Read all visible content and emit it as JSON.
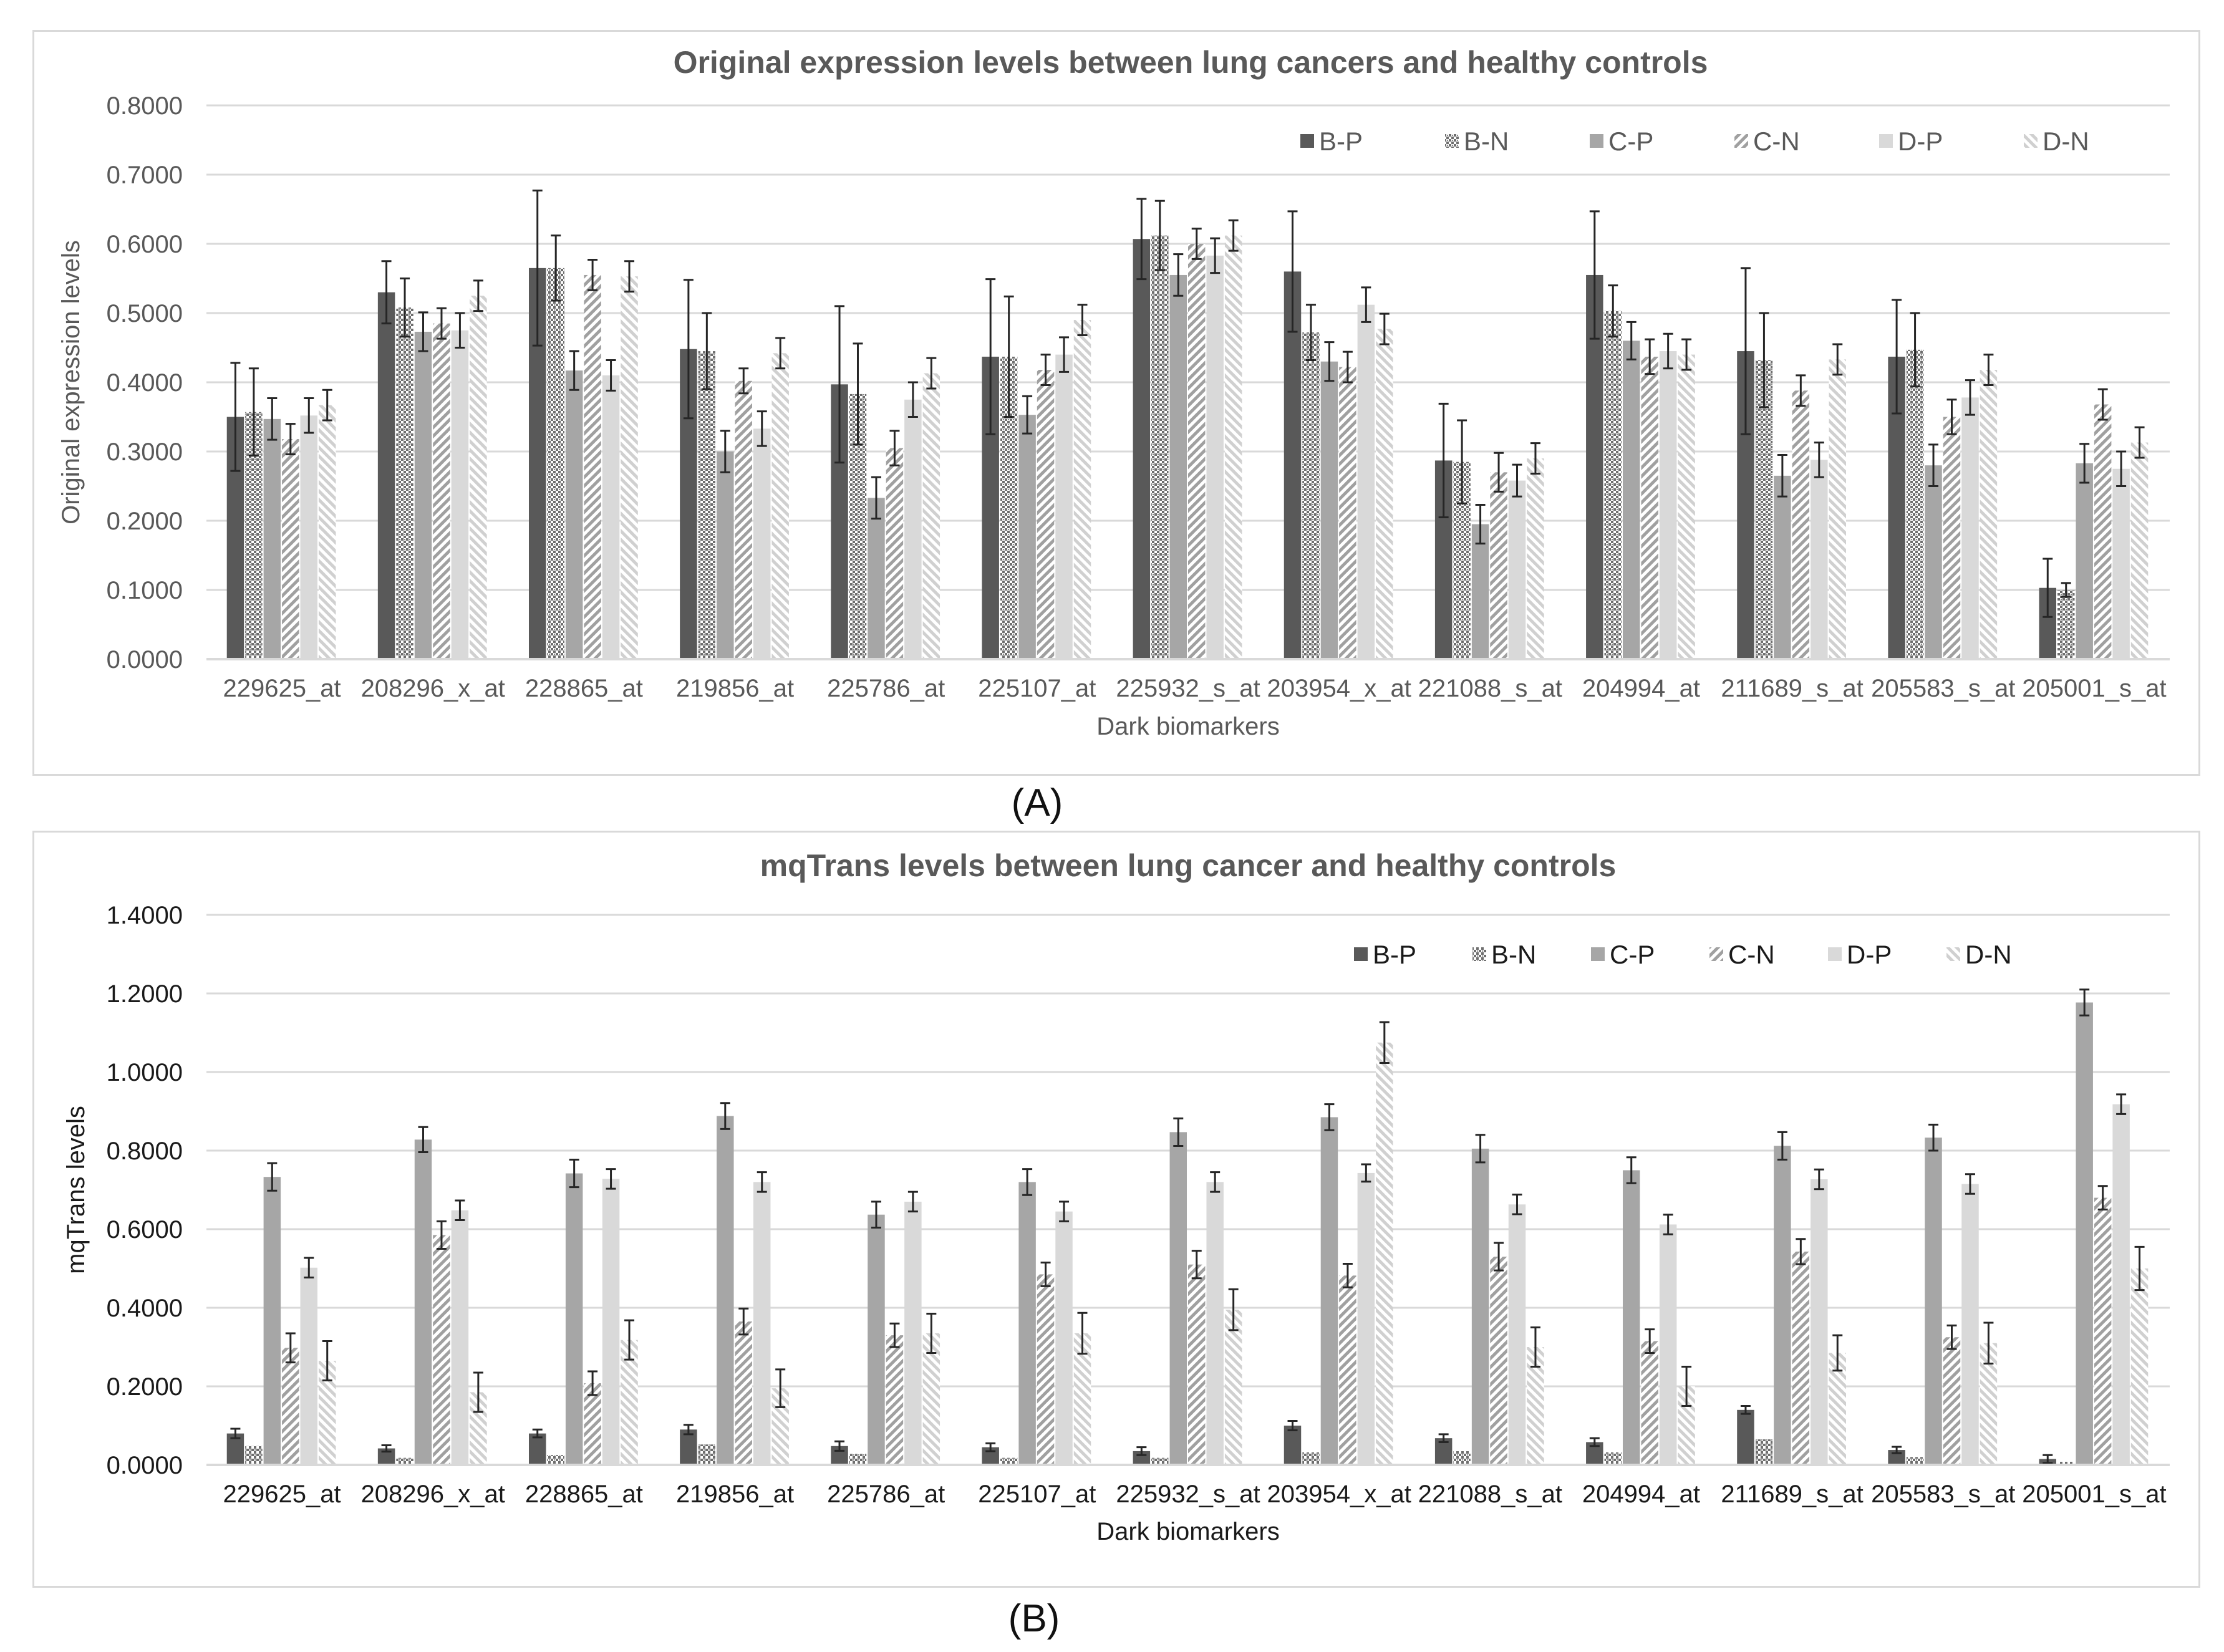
{
  "colors": {
    "B-P": "#595959",
    "B-N": "#6e6e6e",
    "C-P": "#a6a6a6",
    "C-N": "#a0a0a0",
    "D-P": "#d9d9d9",
    "D-N": "#d0d0d0",
    "grid": "#d9d9d9",
    "errorbar": "#262626"
  },
  "captions": {
    "a": "(A)",
    "b": "(B)"
  },
  "chart_data": [
    {
      "type": "bar",
      "title": "Original expression levels between lung cancers and healthy controls",
      "xlabel": "Dark biomarkers",
      "ylabel": "Original expression levels",
      "ylim": [
        0,
        0.8
      ],
      "yticks": [
        "0.0000",
        "0.1000",
        "0.2000",
        "0.3000",
        "0.4000",
        "0.5000",
        "0.6000",
        "0.7000",
        "0.8000"
      ],
      "grid": true,
      "legend_position": "top-right",
      "categories": [
        "229625_at",
        "208296_x_at",
        "228865_at",
        "219856_at",
        "225786_at",
        "225107_at",
        "225932_s_at",
        "203954_x_at",
        "221088_s_at",
        "204994_at",
        "211689_s_at",
        "205583_s_at",
        "205001_s_at"
      ],
      "series": [
        {
          "name": "B-P",
          "values": [
            0.35,
            0.53,
            0.565,
            0.448,
            0.397,
            0.437,
            0.607,
            0.56,
            0.287,
            0.555,
            0.445,
            0.437,
            0.103
          ],
          "errors": [
            0.078,
            0.045,
            0.112,
            0.1,
            0.113,
            0.112,
            0.058,
            0.087,
            0.082,
            0.092,
            0.12,
            0.082,
            0.042
          ]
        },
        {
          "name": "B-N",
          "values": [
            0.357,
            0.508,
            0.565,
            0.445,
            0.383,
            0.437,
            0.612,
            0.472,
            0.285,
            0.503,
            0.432,
            0.447,
            0.1
          ],
          "errors": [
            0.063,
            0.042,
            0.047,
            0.055,
            0.073,
            0.087,
            0.05,
            0.04,
            0.06,
            0.037,
            0.068,
            0.053,
            0.01
          ]
        },
        {
          "name": "C-P",
          "values": [
            0.347,
            0.473,
            0.417,
            0.3,
            0.233,
            0.353,
            0.555,
            0.43,
            0.195,
            0.46,
            0.265,
            0.28,
            0.283
          ],
          "errors": [
            0.03,
            0.028,
            0.028,
            0.03,
            0.03,
            0.027,
            0.03,
            0.028,
            0.028,
            0.027,
            0.03,
            0.03,
            0.028
          ]
        },
        {
          "name": "C-N",
          "values": [
            0.318,
            0.485,
            0.555,
            0.402,
            0.305,
            0.418,
            0.6,
            0.422,
            0.27,
            0.437,
            0.388,
            0.35,
            0.368
          ],
          "errors": [
            0.022,
            0.022,
            0.022,
            0.018,
            0.025,
            0.022,
            0.022,
            0.022,
            0.028,
            0.025,
            0.022,
            0.025,
            0.022
          ]
        },
        {
          "name": "D-P",
          "values": [
            0.352,
            0.475,
            0.41,
            0.333,
            0.375,
            0.44,
            0.583,
            0.512,
            0.258,
            0.445,
            0.288,
            0.378,
            0.275
          ],
          "errors": [
            0.025,
            0.025,
            0.022,
            0.025,
            0.025,
            0.025,
            0.025,
            0.025,
            0.023,
            0.025,
            0.025,
            0.025,
            0.025
          ]
        },
        {
          "name": "D-N",
          "values": [
            0.367,
            0.525,
            0.553,
            0.442,
            0.413,
            0.49,
            0.612,
            0.477,
            0.29,
            0.44,
            0.433,
            0.418,
            0.313
          ],
          "errors": [
            0.022,
            0.022,
            0.022,
            0.022,
            0.022,
            0.022,
            0.022,
            0.022,
            0.022,
            0.022,
            0.022,
            0.022,
            0.022
          ]
        }
      ]
    },
    {
      "type": "bar",
      "title": "mqTrans levels between lung cancer and healthy controls",
      "xlabel": "Dark biomarkers",
      "ylabel": "mqTrans levels",
      "ylim": [
        0,
        1.4
      ],
      "yticks": [
        "0.0000",
        "0.2000",
        "0.4000",
        "0.6000",
        "0.8000",
        "1.0000",
        "1.2000",
        "1.4000"
      ],
      "grid": true,
      "legend_position": "top-right",
      "categories": [
        "229625_at",
        "208296_x_at",
        "228865_at",
        "219856_at",
        "225786_at",
        "225107_at",
        "225932_s_at",
        "203954_x_at",
        "221088_s_at",
        "204994_at",
        "211689_s_at",
        "205583_s_at",
        "205001_s_at"
      ],
      "series": [
        {
          "name": "B-P",
          "values": [
            0.08,
            0.042,
            0.08,
            0.09,
            0.048,
            0.045,
            0.035,
            0.1,
            0.068,
            0.058,
            0.14,
            0.038,
            0.015
          ],
          "errors": [
            0.012,
            0.008,
            0.01,
            0.012,
            0.012,
            0.01,
            0.01,
            0.012,
            0.01,
            0.01,
            0.01,
            0.008,
            0.01
          ]
        },
        {
          "name": "B-N",
          "values": [
            0.048,
            0.018,
            0.025,
            0.052,
            0.028,
            0.018,
            0.018,
            0.032,
            0.035,
            0.032,
            0.065,
            0.02,
            0.008
          ]
        },
        {
          "name": "C-P",
          "values": [
            0.733,
            0.828,
            0.742,
            0.888,
            0.637,
            0.72,
            0.847,
            0.885,
            0.805,
            0.75,
            0.812,
            0.833,
            1.177
          ],
          "errors": [
            0.035,
            0.032,
            0.035,
            0.033,
            0.033,
            0.033,
            0.035,
            0.033,
            0.035,
            0.033,
            0.035,
            0.033,
            0.033
          ]
        },
        {
          "name": "C-N",
          "values": [
            0.298,
            0.585,
            0.208,
            0.365,
            0.33,
            0.485,
            0.51,
            0.482,
            0.53,
            0.315,
            0.543,
            0.325,
            0.68
          ],
          "errors": [
            0.037,
            0.035,
            0.03,
            0.033,
            0.03,
            0.03,
            0.035,
            0.03,
            0.035,
            0.03,
            0.032,
            0.03,
            0.03
          ]
        },
        {
          "name": "D-P",
          "values": [
            0.502,
            0.648,
            0.728,
            0.72,
            0.67,
            0.645,
            0.72,
            0.743,
            0.663,
            0.612,
            0.727,
            0.715,
            0.918
          ],
          "errors": [
            0.025,
            0.025,
            0.025,
            0.025,
            0.025,
            0.025,
            0.025,
            0.022,
            0.025,
            0.025,
            0.025,
            0.025,
            0.025
          ]
        },
        {
          "name": "D-N",
          "values": [
            0.265,
            0.185,
            0.318,
            0.195,
            0.335,
            0.335,
            0.395,
            1.075,
            0.3,
            0.2,
            0.285,
            0.31,
            0.5
          ],
          "errors": [
            0.05,
            0.05,
            0.05,
            0.048,
            0.05,
            0.052,
            0.052,
            0.052,
            0.05,
            0.05,
            0.045,
            0.052,
            0.055
          ]
        }
      ]
    }
  ]
}
